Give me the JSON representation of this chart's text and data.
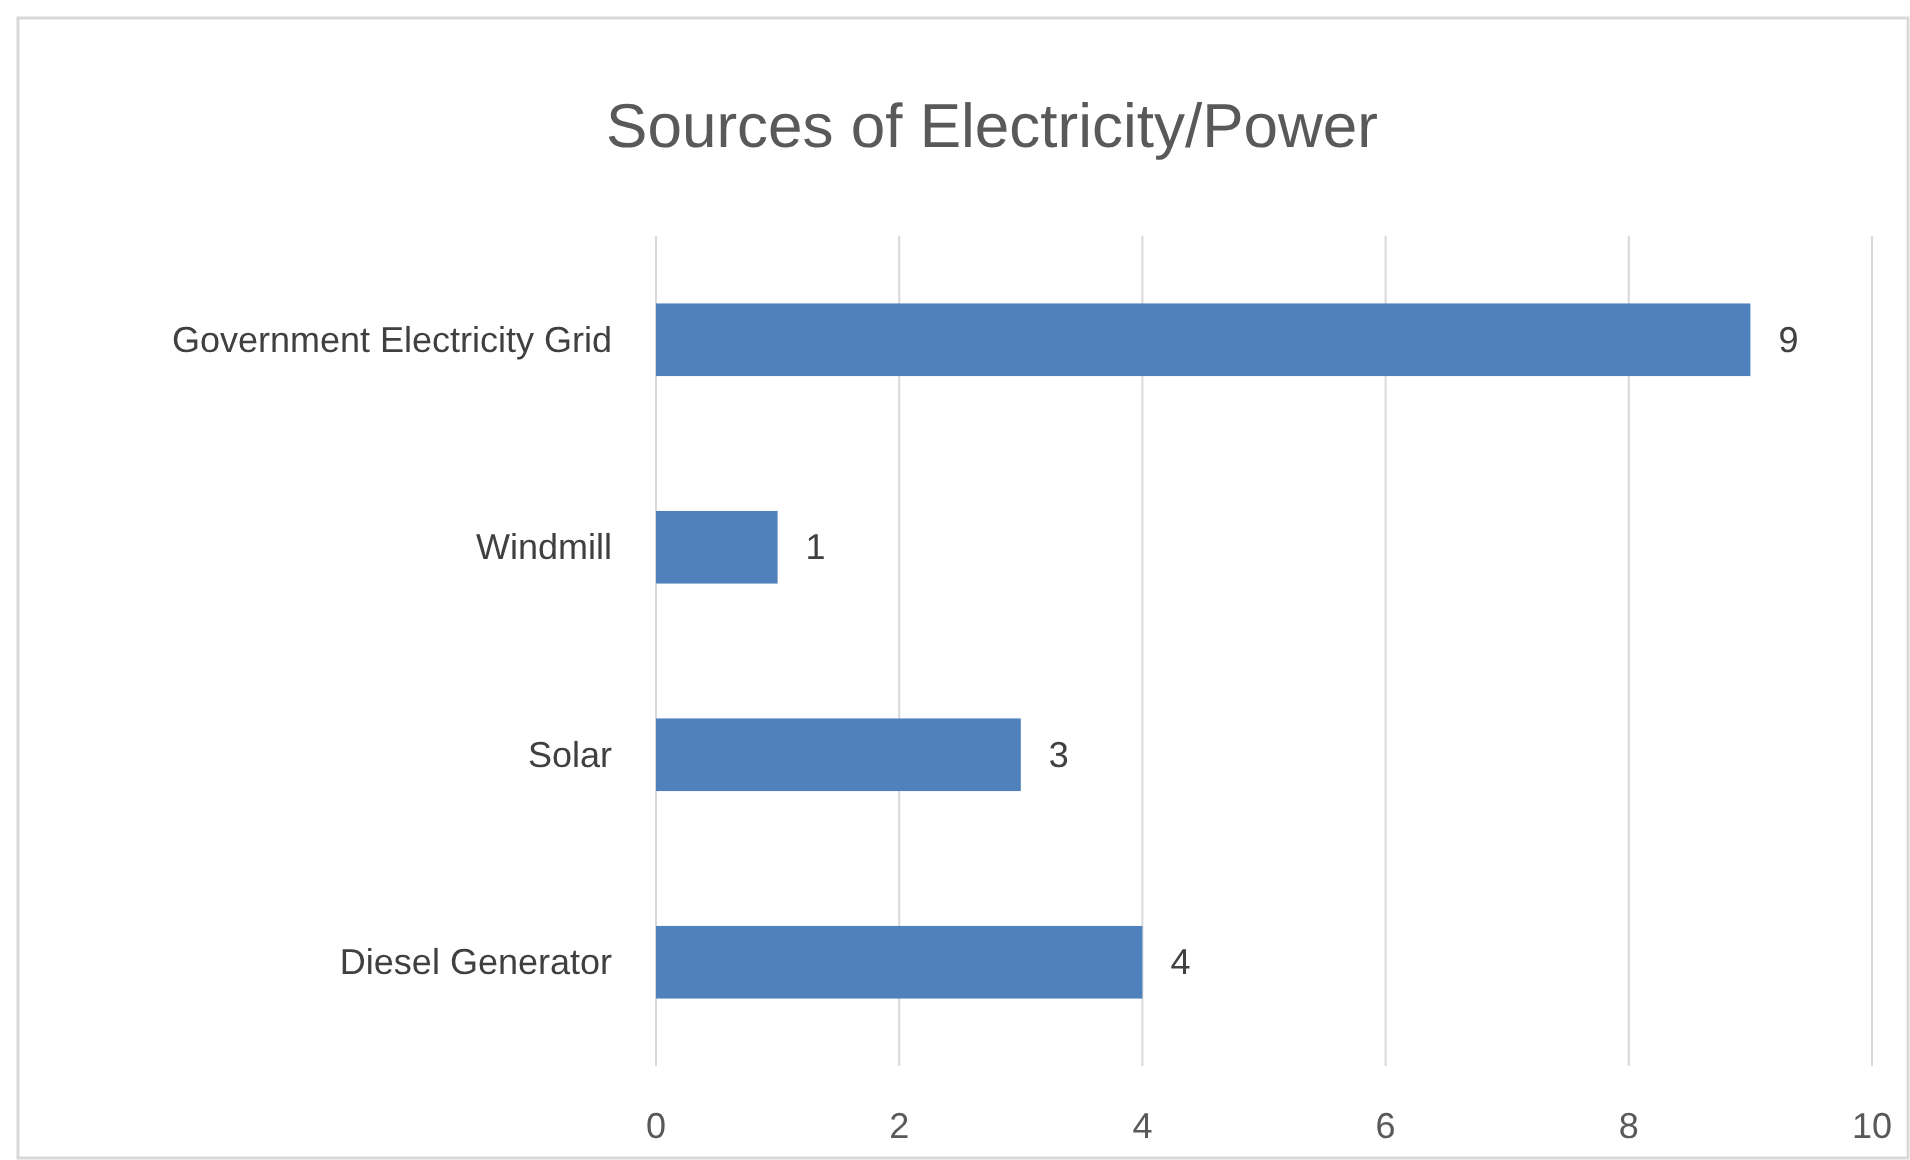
{
  "chart_data": {
    "type": "bar",
    "title": "Sources of Electricity/Power",
    "orientation": "horizontal",
    "categories": [
      "Government Electricity Grid",
      "Windmill",
      "Solar",
      "Diesel Generator"
    ],
    "values": [
      9,
      1,
      3,
      4
    ],
    "color": "#4f81bd",
    "xlim": [
      0,
      10
    ],
    "xticks": [
      0,
      2,
      4,
      6,
      8,
      10
    ],
    "grid": "x",
    "data_labels": true
  }
}
